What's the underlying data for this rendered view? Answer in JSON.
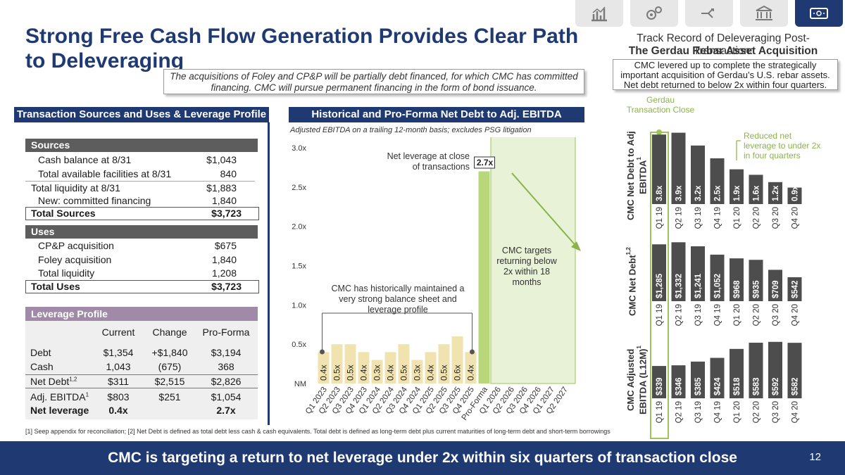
{
  "title": "Strong Free Cash Flow Generation Provides Clear Path to Deleveraging",
  "subtitle": "The acquisitions of Foley and CP&P will be partially debt financed, for which CMC has committed financing.  CMC will pursue permanent financing in the form of bond issuance.",
  "nav_icons": [
    "chart-icon",
    "gears-icon",
    "split-arrow-icon",
    "bank-icon",
    "cash-icon"
  ],
  "left_panel": {
    "header": "Transaction Sources and Uses & Leverage Profile",
    "sources": {
      "label": "Sources",
      "rows": [
        {
          "label": "Cash balance at 8/31",
          "value": "$1,043"
        },
        {
          "label": "Total available facilities at 8/31",
          "value": "840"
        },
        {
          "label": "Total liquidity at 8/31",
          "value": "$1,883"
        },
        {
          "label": "New: committed financing",
          "value": "1,840"
        }
      ],
      "total_label": "Total Sources",
      "total_value": "$3,723"
    },
    "uses": {
      "label": "Uses",
      "rows": [
        {
          "label": "CP&P acquisition",
          "value": "$675"
        },
        {
          "label": "Foley acquisition",
          "value": "1,840"
        },
        {
          "label": "Total liquidity",
          "value": "1,208"
        }
      ],
      "total_label": "Total Uses",
      "total_value": "$3,723"
    },
    "leverage": {
      "label": "Leverage Profile",
      "columns": [
        "Current",
        "Change",
        "Pro-Forma"
      ],
      "rows": [
        {
          "label": "Debt",
          "sup": "",
          "values": [
            "$1,354",
            "+$1,840",
            "$3,194"
          ]
        },
        {
          "label": "Cash",
          "sup": "",
          "values": [
            "1,043",
            "(675)",
            "368"
          ]
        },
        {
          "label": "Net Debt",
          "sup": "1,2",
          "values": [
            "$311",
            "$2,515",
            "$2,826"
          ]
        },
        {
          "label": "Adj. EBITDA",
          "sup": "1",
          "values": [
            "$803",
            "$251",
            "$1,054"
          ]
        },
        {
          "label": "Net leverage",
          "sup": "",
          "values": [
            "0.4x",
            "",
            "2.7x"
          ]
        }
      ]
    }
  },
  "mid_panel": {
    "header": "Historical and Pro-Forma Net Debt to Adj. EBITDA",
    "note": "Adjusted EBITDA on a trailing 12-month basis; excludes PSG litigation",
    "annotation_close_1": "Net leverage at close",
    "annotation_close_2": "of transactions",
    "annotation_close_value": "2.7x",
    "annotation_targets": "CMC targets returning below 2x within 18 months",
    "annotation_history": "CMC has historically maintained a very strong balance sheet and leverage profile"
  },
  "right_panel": {
    "title_1": "Track Record of Deleveraging Post-Transaction:",
    "title_2": "The Gerdau Rebar Asset Acquisition",
    "box_text": "CMC levered up to complete the strategically important acquisition of Gerdau’s U.S. rebar assets. Net debt returned to below 2x within four quarters.",
    "gerdau_label": "Gerdau Transaction Close",
    "reduced_label": "Reduced net leverage to under 2x in four quarters",
    "axis_ratio": "CMC Net Debt to Adj EBITDA",
    "axis_ratio_sup": "1",
    "axis_debt": "CMC Net Debt",
    "axis_debt_sup": "1,2",
    "axis_ebitda": "CMC Adjusted EBITDA (L12M)",
    "axis_ebitda_sup": "1"
  },
  "chart_data": [
    {
      "type": "bar",
      "title": "Historical and Pro-Forma Net Debt to Adj. EBITDA",
      "categories": [
        "Q1 2023",
        "Q2 2023",
        "Q3 2023",
        "Q4 2023",
        "Q1 2024",
        "Q2 2024",
        "Q3 2024",
        "Q4 2024",
        "Q1 2025",
        "Q2 2025",
        "Q3 2025",
        "Q4 2025",
        "Pro-Forma",
        "Q1 2026",
        "Q2 2026",
        "Q3 2026",
        "Q4 2026",
        "Q1 2027",
        "Q2 2027"
      ],
      "values": [
        0.4,
        0.5,
        0.5,
        0.4,
        0.3,
        0.4,
        0.5,
        0.3,
        0.4,
        0.5,
        0.6,
        0.4,
        2.7,
        null,
        null,
        null,
        null,
        null,
        null
      ],
      "labels": [
        "0.4x",
        "0.5x",
        "0.5x",
        "0.4x",
        "0.3x",
        "0.4x",
        "0.5x",
        "0.3x",
        "0.4x",
        "0.5x",
        "0.6x",
        "0.4x",
        "2.7x"
      ],
      "ytick_labels": [
        "NM",
        "0.5x",
        "1.0x",
        "1.5x",
        "2.0x",
        "2.5x",
        "3.0x"
      ],
      "ylim": [
        0,
        3.0
      ],
      "colors": {
        "historical": "#f1e3b0",
        "proforma": "#b7d77a",
        "target": "#e8f2d7"
      }
    },
    {
      "type": "bar",
      "title": "CMC Net Debt to Adj EBITDA",
      "categories": [
        "Q1 19",
        "Q2 19",
        "Q3 19",
        "Q4 19",
        "Q1 20",
        "Q2 20",
        "Q3 20",
        "Q4 20"
      ],
      "values": [
        3.8,
        3.9,
        3.2,
        2.5,
        1.9,
        1.6,
        1.2,
        0.9
      ],
      "labels": [
        "3.8x",
        "3.9x",
        "3.2x",
        "2.5x",
        "1.9x",
        "1.6x",
        "1.2x",
        "0.9x"
      ],
      "ylim": [
        0,
        4.0
      ]
    },
    {
      "type": "bar",
      "title": "CMC Net Debt",
      "categories": [
        "Q1 19",
        "Q2 19",
        "Q3 19",
        "Q4 19",
        "Q1 20",
        "Q2 20",
        "Q3 20",
        "Q4 20"
      ],
      "values": [
        1285,
        1332,
        1241,
        1052,
        968,
        935,
        709,
        542
      ],
      "labels": [
        "$1,285",
        "$1,332",
        "$1,241",
        "$1,052",
        "$968",
        "$935",
        "$709",
        "$542"
      ],
      "ylim": [
        0,
        1400
      ]
    },
    {
      "type": "bar",
      "title": "CMC Adjusted EBITDA (L12M)",
      "categories": [
        "Q1 19",
        "Q2 19",
        "Q3 19",
        "Q4 19",
        "Q1 20",
        "Q2 20",
        "Q3 20",
        "Q4 20"
      ],
      "values": [
        339,
        346,
        385,
        424,
        518,
        583,
        592,
        582
      ],
      "labels": [
        "$339",
        "$346",
        "$385",
        "$424",
        "$518",
        "$583",
        "$592",
        "$582"
      ],
      "ylim": [
        0,
        620
      ]
    }
  ],
  "footnote": "[1] Seep appendix for reconciliation; [2] Net Debt is defined as total debt less cash & cash equivalents. Total debt is defined as long-term debt plus current maturities of long-term debt and short-term borrowings",
  "footer": {
    "text": "CMC is targeting a return to net leverage under 2x within six quarters of transaction close",
    "page": "12"
  }
}
